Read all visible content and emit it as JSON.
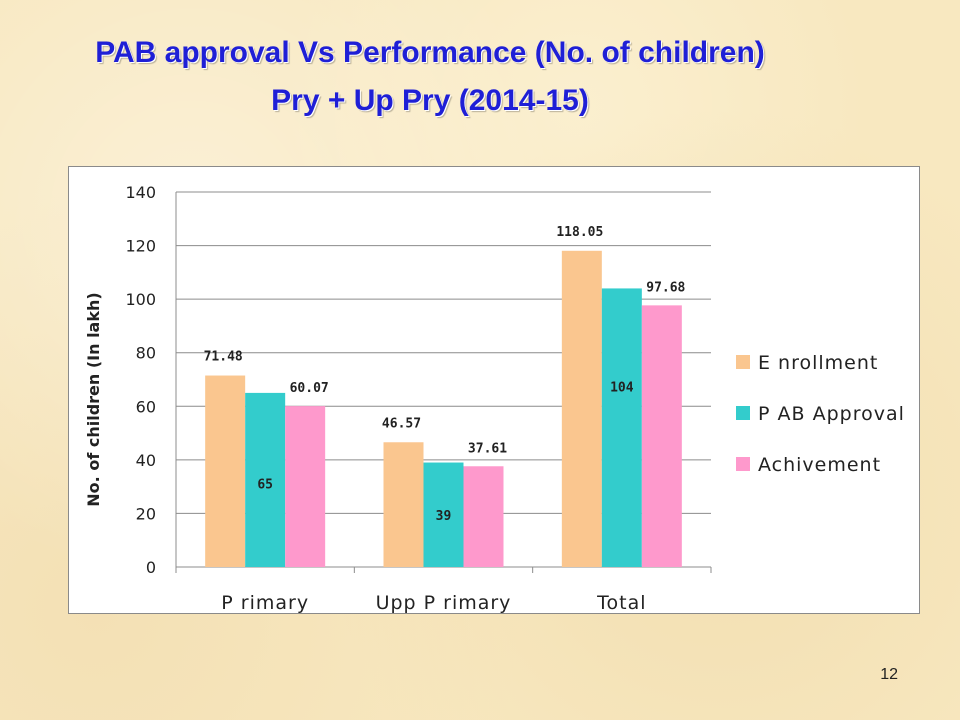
{
  "title_line1": "PAB approval Vs Performance (No. of children)",
  "title_line2": "Pry + Up Pry (2014-15)",
  "page_number": "12",
  "chart_data": {
    "type": "bar",
    "categories": [
      "Primary",
      "Upp Primary",
      "Total"
    ],
    "category_display": [
      "P rimary",
      "Upp P rimary",
      "Total"
    ],
    "series": [
      {
        "name": "E nrollment",
        "values": [
          71.48,
          46.57,
          118.05
        ],
        "color": "#fac68f",
        "labels": [
          "71.48",
          "46.57",
          "118.05"
        ]
      },
      {
        "name": "P AB  Approval",
        "values": [
          65,
          39,
          104
        ],
        "color": "#33cccc",
        "labels": [
          "65",
          "39",
          "104"
        ]
      },
      {
        "name": "Achivement",
        "values": [
          60.07,
          37.61,
          97.68
        ],
        "color": "#fe99cc",
        "labels": [
          "60.07",
          "37.61",
          "97.68"
        ]
      }
    ],
    "ylabel": "No. of children (In lakh)",
    "ylim": [
      0,
      140
    ],
    "yticks": [
      0,
      20,
      40,
      60,
      80,
      100,
      120,
      140
    ],
    "grid": true,
    "legend_position": "right"
  }
}
